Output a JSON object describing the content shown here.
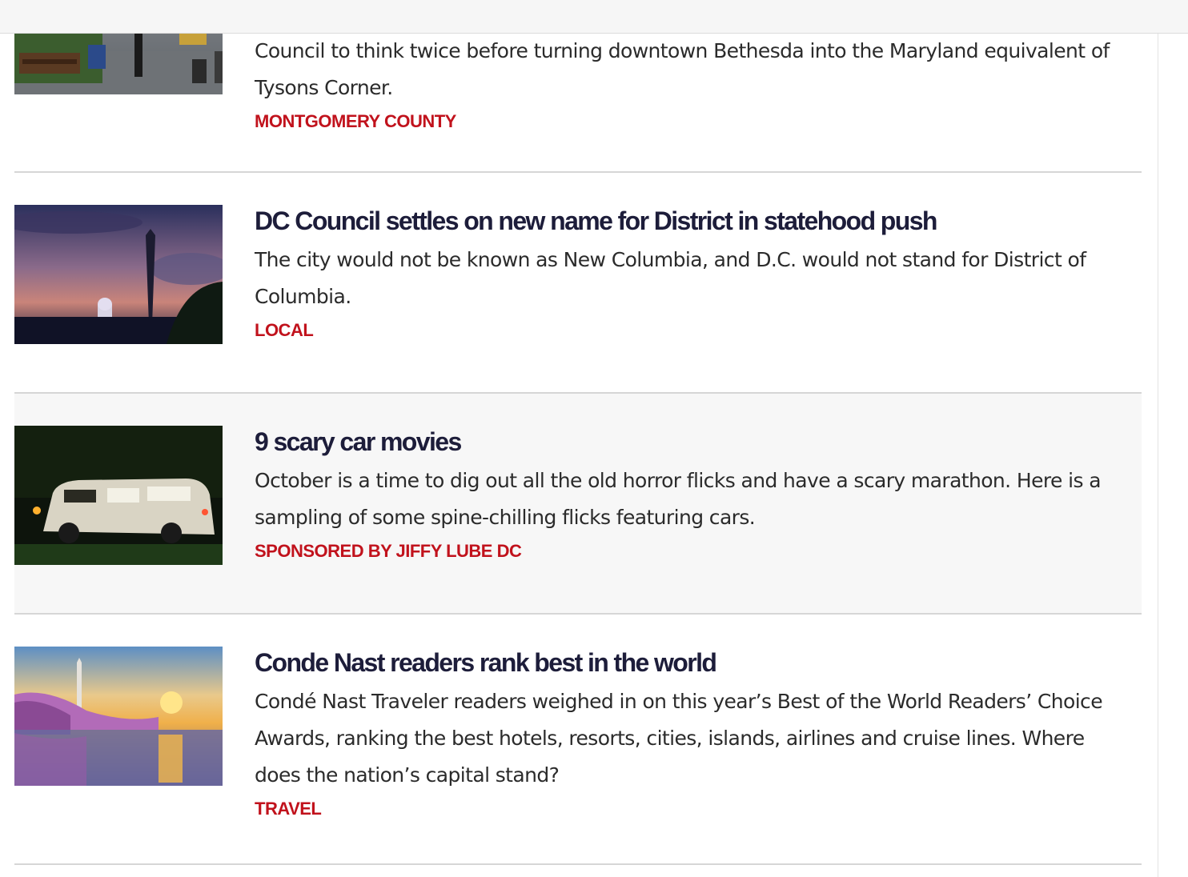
{
  "stories": [
    {
      "title": "",
      "dek": "Council to think twice before turning downtown Bethesda into the Maryland equivalent of Tysons Corner.",
      "category": "MONTGOMERY COUNTY",
      "image": "street-plaza-photo"
    },
    {
      "title": "DC Council settles on new name for District in statehood push",
      "dek": "The city would not be known as New Columbia, and D.C. would not stand for District of Columbia.",
      "category": "LOCAL",
      "image": "washington-monument-dusk-photo"
    },
    {
      "title": "9 scary car movies",
      "dek": "October is a time to dig out all the old horror flicks and have a scary marathon. Here is a sampling of some spine-chilling flicks featuring cars.",
      "category": "SPONSORED BY JIFFY LUBE DC",
      "image": "van-at-night-photo"
    },
    {
      "title": "Conde Nast readers rank best in the world",
      "dek": "Condé Nast Traveler readers weighed in on this year’s Best of the World Readers’ Choice Awards, ranking the best hotels, resorts, cities, islands, airlines and cruise lines. Where does the nation’s capital stand?",
      "category": "TRAVEL",
      "image": "cherry-blossom-sunset-photo"
    }
  ],
  "colors": {
    "headline": "#1d1d3a",
    "category": "#c1121c",
    "divider": "#d6d6d6",
    "shaded_row": "#f7f7f7"
  }
}
